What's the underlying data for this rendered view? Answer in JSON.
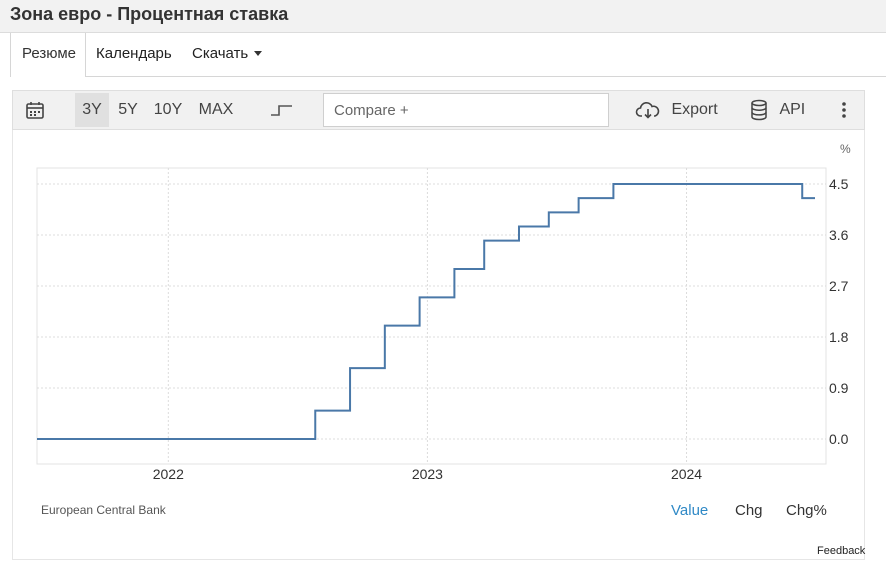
{
  "header": {
    "title": "Зона евро - Процентная ставка"
  },
  "tabs": [
    {
      "label": "Резюме",
      "active": true
    },
    {
      "label": "Календарь"
    },
    {
      "label": "Скачать"
    }
  ],
  "toolbar": {
    "ranges": [
      "3Y",
      "5Y",
      "10Y",
      "MAX"
    ],
    "active_range": "3Y",
    "compare_placeholder": "Compare +",
    "export_label": "Export",
    "api_label": "API",
    "icons": [
      "calendar-icon",
      "step-line-icon",
      "cloud-download-icon",
      "database-icon",
      "more-vertical-icon"
    ]
  },
  "chart_data": {
    "type": "line",
    "step": true,
    "unit": "%",
    "x_ticks": [
      "2022",
      "2023",
      "2024"
    ],
    "y_ticks": [
      "0.0",
      "0.9",
      "1.8",
      "2.7",
      "3.6",
      "4.5"
    ],
    "ylim": [
      0,
      4.5
    ],
    "grid": true,
    "line_color": "#4a78a8",
    "series": [
      {
        "x": [
          "2021-06-30",
          "2022-07-27",
          "2022-09-14",
          "2022-11-02",
          "2022-12-21",
          "2023-02-08",
          "2023-03-22",
          "2023-05-10",
          "2023-06-21",
          "2023-08-02",
          "2023-09-20",
          "2024-06-12",
          "2024-06-30"
        ],
        "values": [
          0,
          0.5,
          1.25,
          2,
          2.5,
          3,
          3.5,
          3.75,
          4,
          4.25,
          4.5,
          4.25,
          4.25
        ]
      }
    ]
  },
  "source": "European Central Bank",
  "view_tabs": [
    {
      "label": "Value",
      "active": true
    },
    {
      "label": "Chg"
    },
    {
      "label": "Chg%"
    }
  ],
  "feedback_label": "Feedback"
}
